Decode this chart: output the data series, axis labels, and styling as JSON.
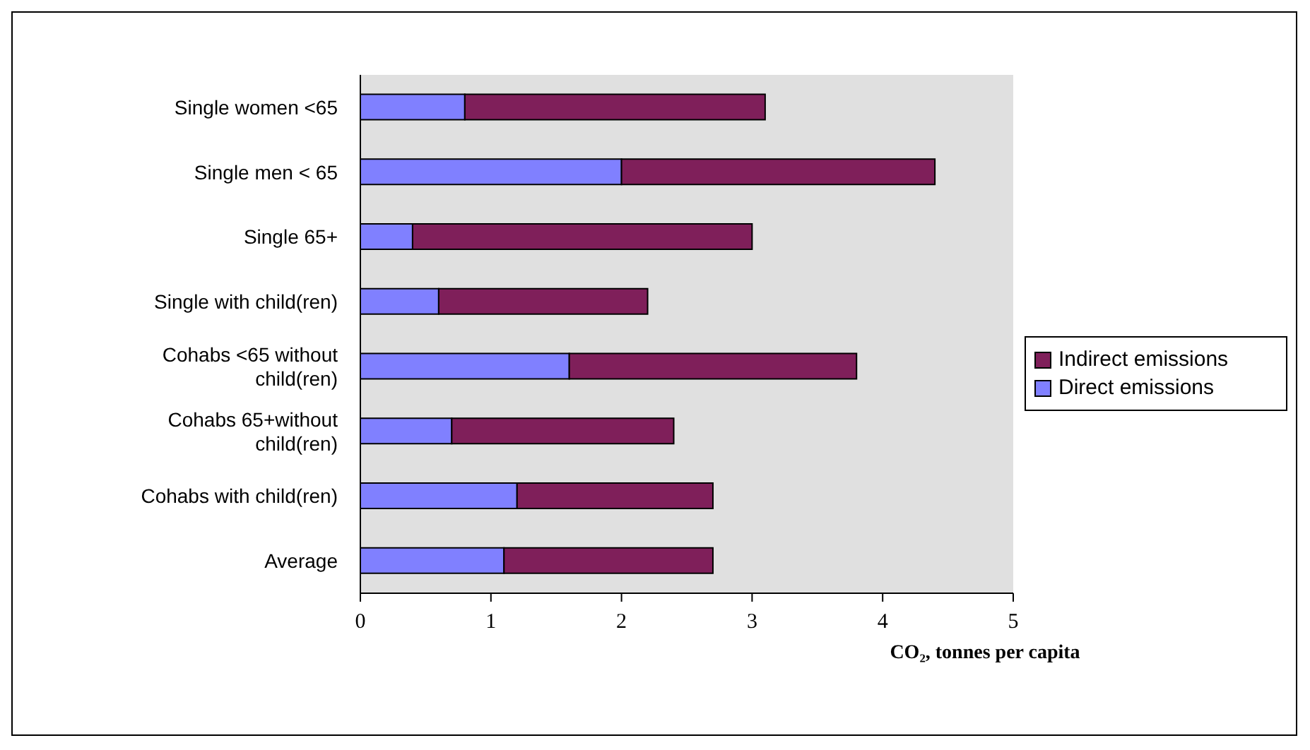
{
  "chart_data": {
    "type": "bar",
    "orientation": "horizontal",
    "stacked": true,
    "categories": [
      "Single women <65",
      "Single men < 65",
      "Single 65+",
      "Single with child(ren)",
      "Cohabs <65 without child(ren)",
      "Cohabs 65+without child(ren)",
      "Cohabs with child(ren)",
      "Average"
    ],
    "series": [
      {
        "name": "Direct emissions",
        "color": "#8080ff",
        "values": [
          0.8,
          2.0,
          0.4,
          0.6,
          1.6,
          0.7,
          1.2,
          1.1
        ]
      },
      {
        "name": "Indirect emissions",
        "color": "#7f1f5a",
        "values": [
          2.3,
          2.4,
          2.6,
          1.6,
          2.2,
          1.7,
          1.5,
          1.6
        ]
      }
    ],
    "xlim": [
      0,
      5
    ],
    "xticks": [
      0,
      1,
      2,
      3,
      4,
      5
    ],
    "xlabel": "CO₂, tonnes per capita",
    "legend": "right"
  }
}
